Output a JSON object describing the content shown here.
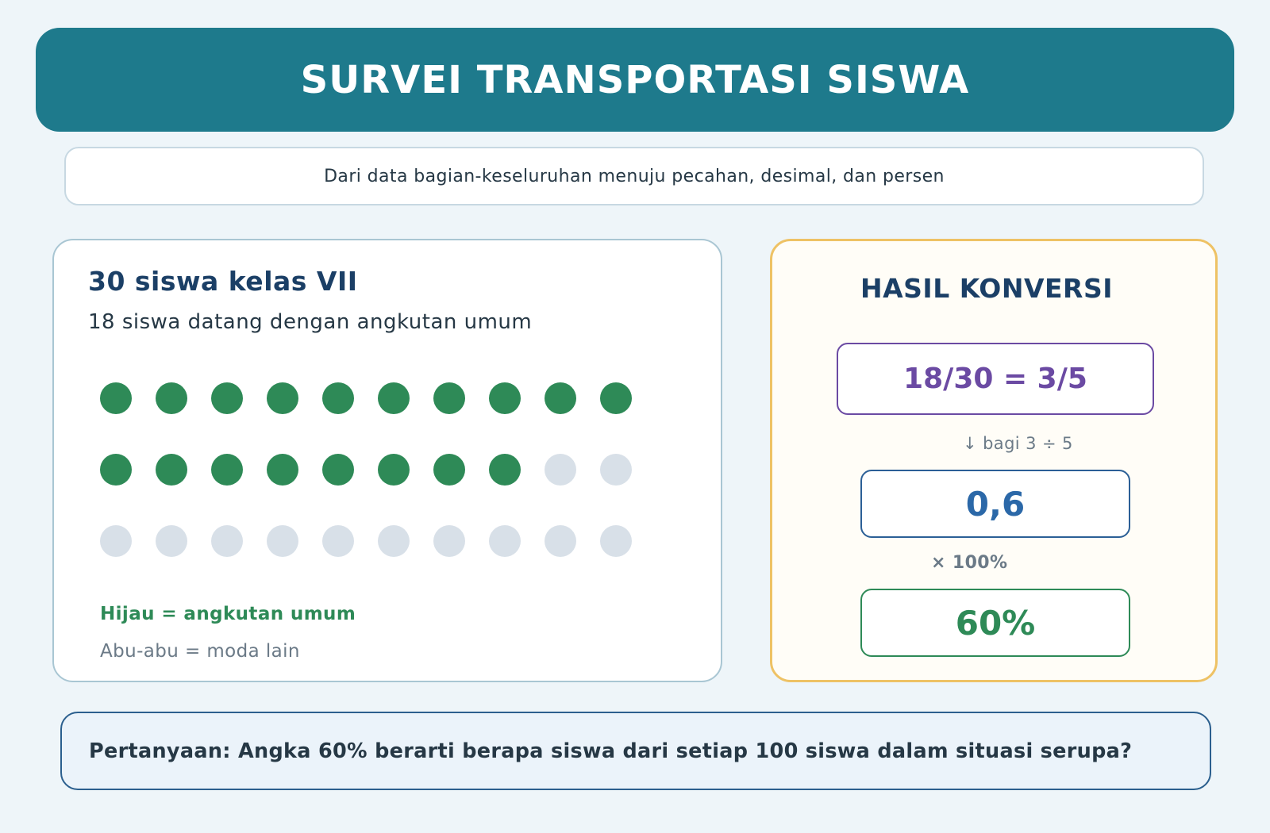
{
  "header": {
    "title": "SURVEI TRANSPORTASI SISWA"
  },
  "subtitle": "Dari data bagian-keseluruhan menuju pecahan, desimal, dan persen",
  "left_panel": {
    "title": "30 siswa kelas VII",
    "subtitle": "18 siswa datang dengan angkutan umum",
    "dots": {
      "total": 30,
      "highlighted": 18,
      "columns": 10
    },
    "legend_green": "Hijau = angkutan umum",
    "legend_gray": "Abu-abu = moda lain"
  },
  "right_panel": {
    "title": "HASIL KONVERSI",
    "fraction": "18/30 = 3/5",
    "step_divide": "↓ bagi 3 ÷ 5",
    "decimal": "0,6",
    "step_multiply": "× 100%",
    "percent": "60%"
  },
  "question": "Pertanyaan: Angka 60% berarti berapa siswa dari setiap 100 siswa dalam situasi serupa?",
  "colors": {
    "header": "#1e7a8c",
    "dot_green": "#2e8a57",
    "dot_gray": "#d8e0e8",
    "fraction": "#6b4aa3",
    "decimal": "#2b68a8",
    "percent": "#2e8a57",
    "accent_border": "#eec265"
  }
}
